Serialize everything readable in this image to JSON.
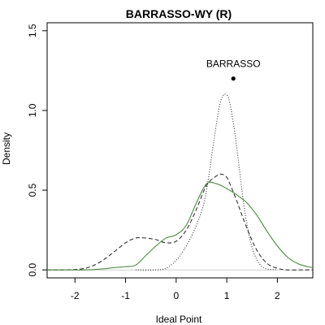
{
  "chart_data": {
    "type": "line",
    "title": "BARRASSO-WY (R)",
    "xlabel": "Ideal Point",
    "ylabel": "Density",
    "xlim": [
      -2.55,
      2.7
    ],
    "ylim": [
      -0.05,
      1.55
    ],
    "x_ticks": [
      -2,
      -1,
      0,
      1,
      2
    ],
    "x_tick_labels": [
      "-2",
      "-1",
      "0",
      "1",
      "2"
    ],
    "y_ticks": [
      0.0,
      0.5,
      1.0,
      1.5
    ],
    "y_tick_labels": [
      "0.0",
      "0.5",
      "1.0",
      "1.5"
    ],
    "grid": false,
    "legend": "none",
    "series": [
      {
        "style": "dashed",
        "color": "#333333",
        "x": [
          -2.55,
          -2.2,
          -1.8,
          -1.5,
          -1.2,
          -1.0,
          -0.8,
          -0.6,
          -0.4,
          -0.2,
          0.0,
          0.2,
          0.4,
          0.6,
          0.8,
          0.9,
          1.0,
          1.1,
          1.2,
          1.4,
          1.6,
          1.8,
          2.0,
          2.2,
          2.5,
          2.7
        ],
        "y": [
          0.0,
          0.0,
          0.01,
          0.05,
          0.12,
          0.17,
          0.2,
          0.2,
          0.19,
          0.17,
          0.18,
          0.25,
          0.38,
          0.53,
          0.59,
          0.6,
          0.58,
          0.51,
          0.43,
          0.26,
          0.12,
          0.04,
          0.01,
          0.0,
          0.0,
          0.0
        ]
      },
      {
        "style": "solid",
        "color": "#4a8a3f",
        "x": [
          -2.55,
          -2.2,
          -1.8,
          -1.5,
          -1.2,
          -1.0,
          -0.8,
          -0.6,
          -0.4,
          -0.2,
          0.0,
          0.2,
          0.4,
          0.6,
          0.8,
          1.0,
          1.2,
          1.4,
          1.6,
          1.8,
          2.0,
          2.2,
          2.4,
          2.6,
          2.7
        ],
        "y": [
          0.0,
          0.0,
          0.0,
          0.005,
          0.015,
          0.02,
          0.03,
          0.09,
          0.15,
          0.2,
          0.22,
          0.28,
          0.42,
          0.54,
          0.54,
          0.51,
          0.47,
          0.42,
          0.34,
          0.24,
          0.15,
          0.08,
          0.04,
          0.02,
          0.015
        ]
      },
      {
        "style": "dotted",
        "color": "#333333",
        "x": [
          -0.8,
          -0.4,
          -0.2,
          0.0,
          0.2,
          0.4,
          0.55,
          0.65,
          0.75,
          0.85,
          0.92,
          0.98,
          1.05,
          1.15,
          1.25,
          1.35,
          1.5,
          1.7,
          2.0
        ],
        "y": [
          0.0,
          0.0,
          0.01,
          0.06,
          0.15,
          0.28,
          0.42,
          0.6,
          0.82,
          1.02,
          1.09,
          1.1,
          1.06,
          0.88,
          0.63,
          0.38,
          0.14,
          0.02,
          0.0
        ]
      }
    ],
    "point": {
      "x": 1.13,
      "y": 1.2,
      "label": "BARRASSO"
    }
  }
}
